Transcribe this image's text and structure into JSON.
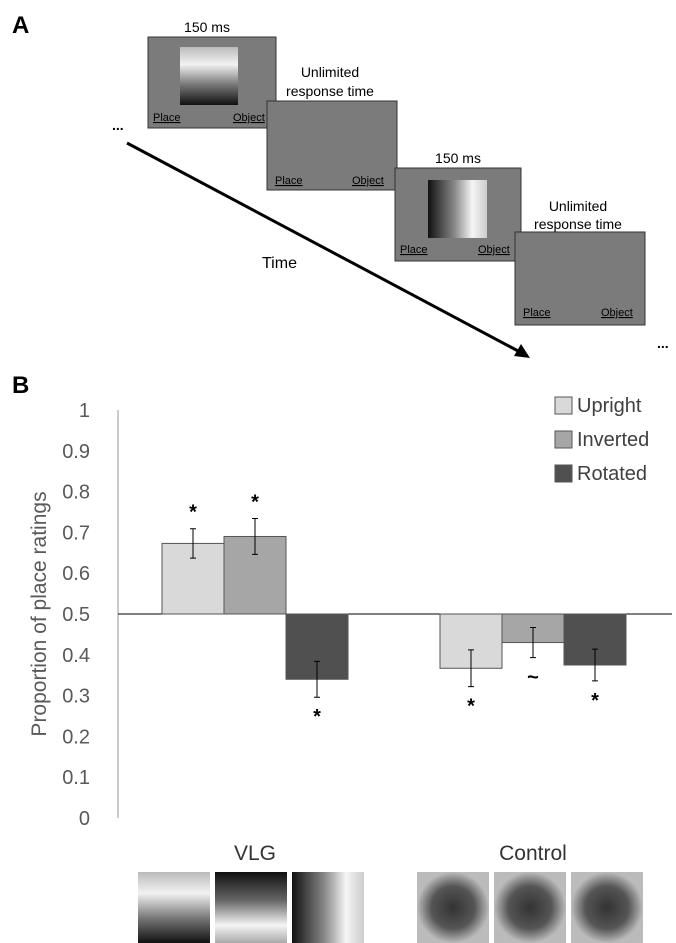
{
  "panel_a": {
    "label": "A",
    "screens": [
      {
        "caption": [
          "150 ms"
        ],
        "left": "Place",
        "right": "Object"
      },
      {
        "caption": [
          "Unlimited",
          "response time"
        ],
        "left": "Place",
        "right": "Object"
      },
      {
        "caption": [
          "150 ms"
        ],
        "left": "Place",
        "right": "Object"
      },
      {
        "caption": [
          "Unlimited",
          "response time"
        ],
        "left": "Place",
        "right": "Object"
      }
    ],
    "ellipsis_start": "...",
    "ellipsis_end": "...",
    "time_label": "Time"
  },
  "chart_data": {
    "type": "bar",
    "panel_label": "B",
    "y_label": "Proportion of place ratings",
    "categories": [
      "VLG",
      "Control"
    ],
    "baseline": 0.5,
    "series": [
      {
        "name": "Upright",
        "color": "#d9d9d9",
        "values": [
          0.673,
          0.367
        ],
        "errors": [
          0.036,
          0.045
        ],
        "markers": [
          "*",
          "*"
        ]
      },
      {
        "name": "Inverted",
        "color": "#a6a6a6",
        "values": [
          0.69,
          0.43
        ],
        "errors": [
          0.044,
          0.037
        ],
        "markers": [
          "*",
          "~"
        ]
      },
      {
        "name": "Rotated",
        "color": "#505050",
        "values": [
          0.34,
          0.375
        ],
        "errors": [
          0.044,
          0.039
        ],
        "markers": [
          "*",
          "*"
        ]
      }
    ],
    "ylim": [
      0,
      1
    ],
    "yticks": [
      0,
      0.1,
      0.2,
      0.3,
      0.4,
      0.5,
      0.6,
      0.7,
      0.8,
      0.9,
      1
    ],
    "legend": "upper right"
  }
}
